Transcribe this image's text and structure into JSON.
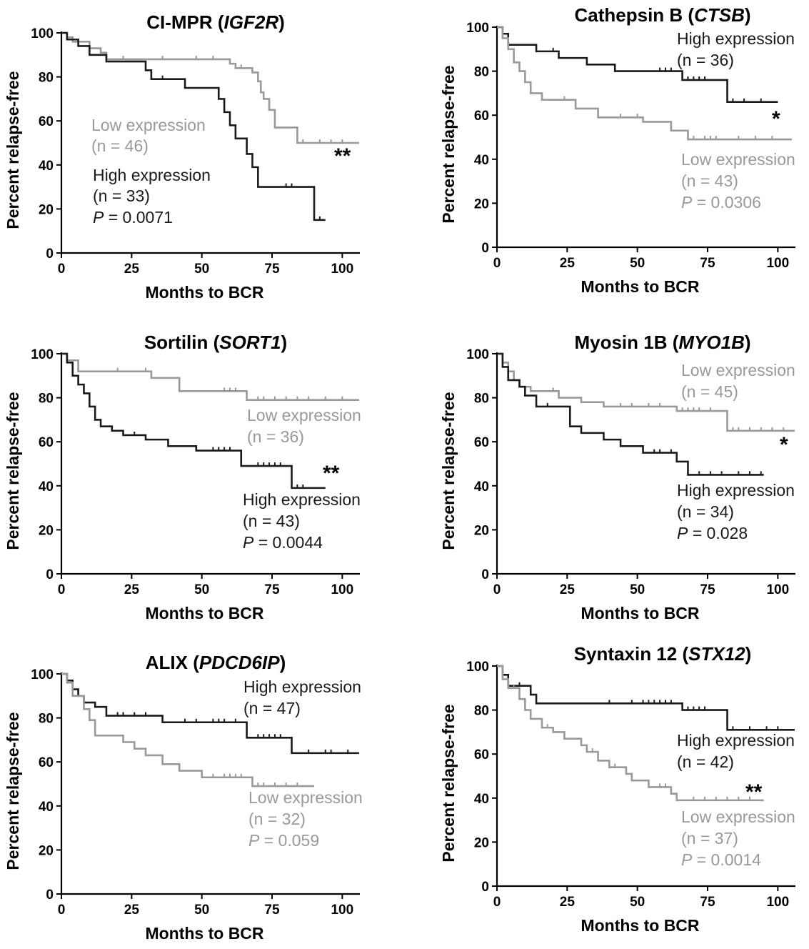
{
  "colors": {
    "high": "#1a1a1a",
    "low": "#999999",
    "axis": "#000000"
  },
  "chart_data": [
    {
      "type": "line",
      "title": {
        "pre": "CI-MPR (",
        "gene": "IGF2R",
        "post": ")"
      },
      "xlabel": "Months to BCR",
      "ylabel": "Percent relapse-free",
      "xlim": [
        0,
        105
      ],
      "ylim": [
        0,
        100
      ],
      "xticks": [
        0,
        25,
        50,
        75,
        100
      ],
      "yticks": [
        0,
        20,
        40,
        60,
        80,
        100
      ],
      "significance": "**",
      "series": [
        {
          "name": "Low expression",
          "n_label": "(n = 46)",
          "color_key": "low",
          "x": [
            0,
            2,
            4,
            10,
            14,
            16,
            58,
            60,
            62,
            68,
            70,
            71,
            72,
            74,
            76,
            84,
            90,
            106
          ],
          "y": [
            100,
            98,
            96,
            93,
            91,
            88,
            88,
            86,
            84,
            82,
            78,
            73,
            70,
            65,
            57,
            50,
            50,
            50
          ],
          "censor_x": [
            22,
            36,
            48,
            54,
            64,
            86,
            92,
            96,
            100
          ]
        },
        {
          "name": "High expression",
          "n_label": "(n = 33)",
          "color_key": "high",
          "x": [
            0,
            2,
            6,
            10,
            16,
            30,
            32,
            44,
            56,
            58,
            60,
            62,
            66,
            68,
            70,
            90,
            94
          ],
          "y": [
            100,
            97,
            94,
            90,
            87,
            83,
            79,
            75,
            70,
            64,
            58,
            52,
            45,
            39,
            30,
            15,
            15
          ],
          "censor_x": [
            36,
            80,
            82,
            92
          ]
        }
      ],
      "annotations": [
        {
          "text": "Low expression",
          "color_key": "low"
        },
        {
          "text": "(n = 46)",
          "color_key": "low"
        },
        {
          "text": "High expression",
          "color_key": "high"
        },
        {
          "text": "(n = 33)",
          "color_key": "high"
        },
        {
          "text": "P",
          "italic": true,
          "rest": " = 0.0071",
          "color_key": "high"
        }
      ]
    },
    {
      "type": "line",
      "title": {
        "pre": "Cathepsin  B (",
        "gene": "CTSB",
        "post": ")"
      },
      "xlabel": "Months to BCR",
      "ylabel": "Percent relapse-free",
      "xlim": [
        0,
        105
      ],
      "ylim": [
        0,
        100
      ],
      "xticks": [
        0,
        25,
        50,
        75,
        100
      ],
      "yticks": [
        0,
        20,
        40,
        60,
        80,
        100
      ],
      "significance": "*",
      "series": [
        {
          "name": "High expression",
          "n_label": "(n = 36)",
          "color_key": "high",
          "x": [
            0,
            2,
            4,
            14,
            22,
            32,
            42,
            64,
            66,
            82,
            100
          ],
          "y": [
            100,
            97,
            92,
            89,
            86,
            83,
            80,
            80,
            76,
            66,
            66
          ],
          "censor_x": [
            20,
            58,
            60,
            62,
            68,
            70,
            72,
            74,
            84,
            88,
            94
          ]
        },
        {
          "name": "Low expression",
          "n_label": "(n = 43)",
          "color_key": "low",
          "x": [
            0,
            2,
            4,
            6,
            8,
            10,
            12,
            16,
            28,
            36,
            52,
            62,
            68,
            105
          ],
          "y": [
            100,
            95,
            90,
            84,
            80,
            75,
            70,
            67,
            63,
            59,
            57,
            53,
            49,
            49
          ],
          "censor_x": [
            24,
            44,
            50,
            70,
            74,
            76,
            78,
            86,
            92,
            98
          ]
        }
      ],
      "annotations": [
        {
          "text": "High expression",
          "color_key": "high"
        },
        {
          "text": "(n = 36)",
          "color_key": "high"
        },
        {
          "text": "Low expression",
          "color_key": "low"
        },
        {
          "text": "(n = 43)",
          "color_key": "low"
        },
        {
          "text": "P",
          "italic": true,
          "rest": " = 0.0306",
          "color_key": "low"
        }
      ]
    },
    {
      "type": "line",
      "title": {
        "pre": "Sortilin (",
        "gene": "SORT1",
        "post": ")"
      },
      "xlabel": "Months to BCR",
      "ylabel": "Percent relapse-free",
      "xlim": [
        0,
        105
      ],
      "ylim": [
        0,
        100
      ],
      "xticks": [
        0,
        25,
        50,
        75,
        100
      ],
      "yticks": [
        0,
        20,
        40,
        60,
        80,
        100
      ],
      "significance": "**",
      "series": [
        {
          "name": "Low expression",
          "n_label": "(n = 36)",
          "color_key": "low",
          "x": [
            0,
            2,
            6,
            32,
            42,
            66,
            106
          ],
          "y": [
            100,
            97,
            92,
            89,
            83,
            79,
            79
          ],
          "censor_x": [
            20,
            30,
            58,
            60,
            62,
            70,
            72,
            76,
            80,
            84,
            88,
            94,
            100
          ]
        },
        {
          "name": "High expression",
          "n_label": "(n = 43)",
          "color_key": "high",
          "x": [
            0,
            2,
            4,
            6,
            8,
            10,
            12,
            14,
            18,
            22,
            30,
            38,
            48,
            64,
            82,
            94
          ],
          "y": [
            100,
            96,
            90,
            86,
            82,
            76,
            70,
            67,
            65,
            63,
            61,
            58,
            56,
            49,
            39,
            39
          ],
          "censor_x": [
            26,
            54,
            56,
            58,
            60,
            70,
            72,
            74,
            76,
            78,
            84,
            86
          ]
        }
      ],
      "annotations": [
        {
          "text": "Low expression",
          "color_key": "low"
        },
        {
          "text": "(n = 36)",
          "color_key": "low"
        },
        {
          "text": "High expression",
          "color_key": "high"
        },
        {
          "text": "(n = 43)",
          "color_key": "high"
        },
        {
          "text": "P",
          "italic": true,
          "rest": " = 0.0044",
          "color_key": "high"
        }
      ]
    },
    {
      "type": "line",
      "title": {
        "pre": "Myosin 1B (",
        "gene": "MYO1B",
        "post": ")"
      },
      "xlabel": "Months to BCR",
      "ylabel": "Percent relapse-free",
      "xlim": [
        0,
        105
      ],
      "ylim": [
        0,
        100
      ],
      "xticks": [
        0,
        25,
        50,
        75,
        100
      ],
      "yticks": [
        0,
        20,
        40,
        60,
        80,
        100
      ],
      "significance": "*",
      "series": [
        {
          "name": "Low expression",
          "n_label": "(n = 45)",
          "color_key": "low",
          "x": [
            0,
            2,
            4,
            6,
            8,
            12,
            22,
            30,
            38,
            64,
            82,
            106
          ],
          "y": [
            100,
            96,
            92,
            88,
            85,
            83,
            80,
            78,
            76,
            74,
            65,
            65
          ],
          "censor_x": [
            20,
            44,
            48,
            54,
            58,
            66,
            68,
            70,
            72,
            76,
            84,
            86,
            90,
            94,
            98,
            102
          ]
        },
        {
          "name": "High expression",
          "n_label": "(n = 34)",
          "color_key": "high",
          "x": [
            0,
            2,
            4,
            8,
            10,
            14,
            26,
            30,
            38,
            44,
            52,
            64,
            68,
            95
          ],
          "y": [
            100,
            94,
            88,
            85,
            81,
            76,
            67,
            64,
            61,
            58,
            55,
            51,
            45,
            45
          ],
          "censor_x": [
            18,
            56,
            58,
            62,
            72,
            76,
            80,
            86,
            90,
            94
          ]
        }
      ],
      "annotations": [
        {
          "text": "Low expression",
          "color_key": "low"
        },
        {
          "text": "(n = 45)",
          "color_key": "low"
        },
        {
          "text": "High expression",
          "color_key": "high"
        },
        {
          "text": "(n = 34)",
          "color_key": "high"
        },
        {
          "text": "P",
          "italic": true,
          "rest": " = 0.028",
          "color_key": "high"
        }
      ]
    },
    {
      "type": "line",
      "title": {
        "pre": "ALIX (",
        "gene": "PDCD6IP",
        "post": ")"
      },
      "xlabel": "Months to BCR",
      "ylabel": "Percent relapse-free",
      "xlim": [
        0,
        105
      ],
      "ylim": [
        0,
        100
      ],
      "xticks": [
        0,
        25,
        50,
        75,
        100
      ],
      "yticks": [
        0,
        20,
        40,
        60,
        80,
        100
      ],
      "significance": "",
      "series": [
        {
          "name": "High expression",
          "n_label": "(n = 47)",
          "color_key": "high",
          "x": [
            0,
            2,
            4,
            6,
            8,
            12,
            16,
            34,
            36,
            64,
            66,
            82,
            106
          ],
          "y": [
            100,
            97,
            93,
            90,
            87,
            85,
            81,
            81,
            78,
            78,
            71,
            64,
            64
          ],
          "censor_x": [
            20,
            22,
            26,
            30,
            44,
            48,
            54,
            56,
            58,
            62,
            70,
            72,
            74,
            76,
            78,
            88,
            94,
            96,
            102
          ]
        },
        {
          "name": "Low expression",
          "n_label": "(n = 32)",
          "color_key": "low",
          "x": [
            0,
            2,
            4,
            8,
            10,
            12,
            22,
            26,
            30,
            36,
            42,
            50,
            66,
            68,
            90
          ],
          "y": [
            100,
            96,
            90,
            84,
            79,
            72,
            69,
            66,
            63,
            59,
            56,
            53,
            53,
            49,
            49
          ],
          "censor_x": [
            54,
            58,
            60,
            62,
            64,
            70,
            72,
            76,
            80,
            84
          ]
        }
      ],
      "annotations": [
        {
          "text": "High expression",
          "color_key": "high"
        },
        {
          "text": "(n = 47)",
          "color_key": "high"
        },
        {
          "text": "Low expression",
          "color_key": "low"
        },
        {
          "text": "(n = 32)",
          "color_key": "low"
        },
        {
          "text": "P",
          "italic": true,
          "rest": " = 0.059",
          "color_key": "low"
        }
      ]
    },
    {
      "type": "line",
      "title": {
        "pre": "Syntaxin 12 (",
        "gene": "STX12",
        "post": ")"
      },
      "xlabel": "Months to BCR",
      "ylabel": "Percent relapse-free",
      "xlim": [
        0,
        105
      ],
      "ylim": [
        0,
        100
      ],
      "xticks": [
        0,
        25,
        50,
        75,
        100
      ],
      "yticks": [
        0,
        20,
        40,
        60,
        80,
        100
      ],
      "significance": "**",
      "series": [
        {
          "name": "High expression",
          "n_label": "(n = 42)",
          "color_key": "high",
          "x": [
            0,
            2,
            4,
            12,
            14,
            66,
            82,
            106
          ],
          "y": [
            100,
            96,
            91,
            87,
            83,
            80,
            71,
            71
          ],
          "censor_x": [
            8,
            40,
            48,
            52,
            54,
            56,
            58,
            60,
            62,
            68,
            70,
            72,
            74,
            84,
            90,
            96,
            100
          ]
        },
        {
          "name": "Low expression",
          "n_label": "(n = 37)",
          "color_key": "low",
          "x": [
            0,
            2,
            4,
            8,
            10,
            12,
            16,
            20,
            24,
            30,
            32,
            36,
            40,
            46,
            48,
            54,
            62,
            64,
            95
          ],
          "y": [
            100,
            94,
            90,
            85,
            80,
            76,
            72,
            70,
            67,
            64,
            61,
            57,
            54,
            51,
            48,
            45,
            42,
            39,
            39
          ],
          "censor_x": [
            6,
            18,
            34,
            42,
            58,
            60,
            70,
            74,
            78,
            82,
            86,
            90
          ]
        }
      ],
      "annotations": [
        {
          "text": "High expression",
          "color_key": "high"
        },
        {
          "text": "(n = 42)",
          "color_key": "high"
        },
        {
          "text": "Low expression",
          "color_key": "low"
        },
        {
          "text": "(n = 37)",
          "color_key": "low"
        },
        {
          "text": "P",
          "italic": true,
          "rest": " = 0.0014",
          "color_key": "low"
        }
      ]
    }
  ]
}
